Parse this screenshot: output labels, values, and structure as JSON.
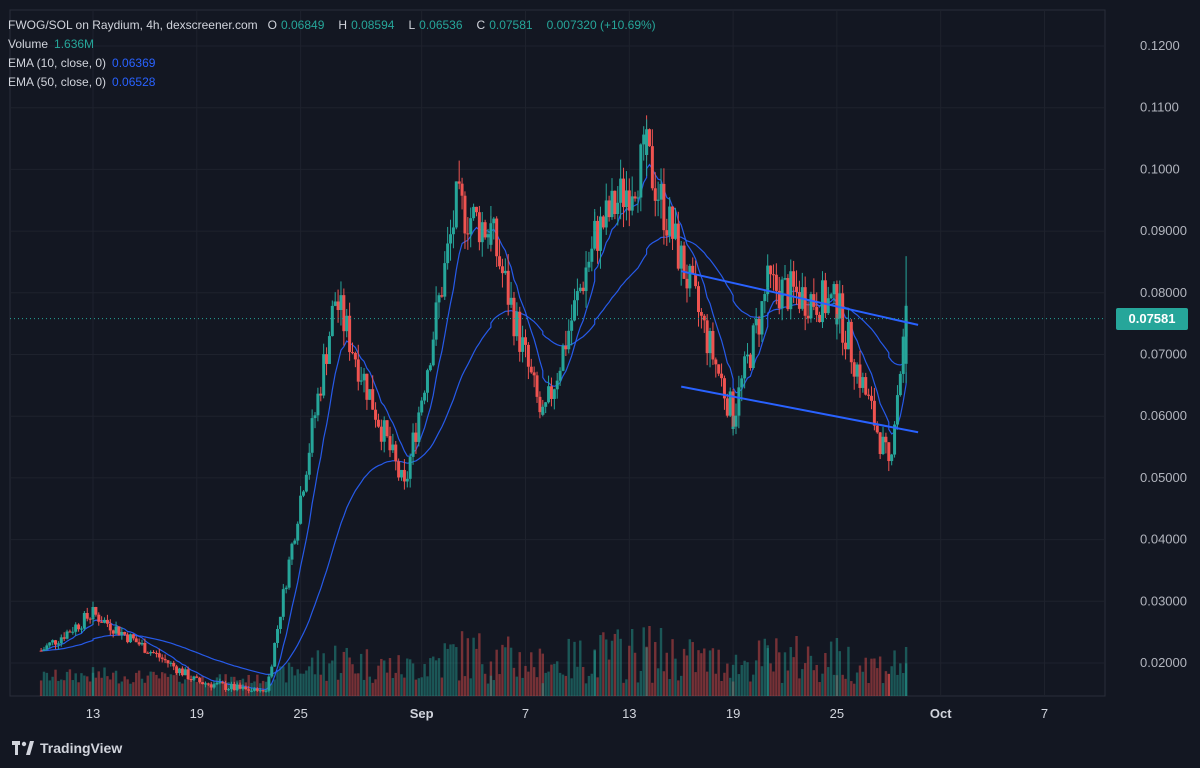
{
  "header": {
    "symbol": "FWOG/SOL on Raydium, 4h, dexscreener.com",
    "open_label": "O",
    "open": "0.06849",
    "high_label": "H",
    "high": "0.08594",
    "low_label": "L",
    "low": "0.06536",
    "close_label": "C",
    "close": "0.07581",
    "change": "0.007320 (+10.69%)"
  },
  "indicators": {
    "volume_label": "Volume",
    "volume": "1.636M",
    "ema10_label": "EMA (10, close, 0)",
    "ema10": "0.06369",
    "ema50_label": "EMA (50, close, 0)",
    "ema50": "0.06528"
  },
  "last_price": "0.07581",
  "branding": "TradingView",
  "colors": {
    "up": "#26a69a",
    "down": "#ef5350",
    "ema": "#2962ff",
    "channel": "#2962ff",
    "bg": "#131722"
  },
  "chart_data": {
    "type": "candlestick",
    "yaxis": {
      "ticks": [
        "0.02000",
        "0.03000",
        "0.04000",
        "0.05000",
        "0.06000",
        "0.07000",
        "0.08000",
        "0.09000",
        "0.1000",
        "0.1100",
        "0.1200"
      ]
    },
    "xaxis": {
      "ticks": [
        "13",
        "19",
        "25",
        "Sep",
        "7",
        "13",
        "19",
        "25",
        "Oct",
        "7"
      ]
    },
    "grid": true,
    "key_prices": [
      {
        "x": "Aug 13",
        "y": 0.028
      },
      {
        "x": "Aug 19",
        "y": 0.017
      },
      {
        "x": "Aug 23",
        "y": 0.015
      },
      {
        "x": "Aug 27",
        "y": 0.079
      },
      {
        "x": "Aug 31",
        "y": 0.048
      },
      {
        "x": "Sep 3",
        "y": 0.094
      },
      {
        "x": "Sep 5",
        "y": 0.09
      },
      {
        "x": "Sep 8",
        "y": 0.059
      },
      {
        "x": "Sep 11",
        "y": 0.089
      },
      {
        "x": "Sep 14",
        "y": 0.102
      },
      {
        "x": "Sep 19",
        "y": 0.06
      },
      {
        "x": "Sep 21",
        "y": 0.081
      },
      {
        "x": "Sep 25",
        "y": 0.078
      },
      {
        "x": "Sep 28",
        "y": 0.052
      },
      {
        "x": "Sep 29",
        "y": 0.07581
      }
    ],
    "channel": {
      "upper": [
        {
          "x": "Sep 16",
          "y": 0.0835
        },
        {
          "x": "Sep 29",
          "y": 0.0748
        }
      ],
      "lower": [
        {
          "x": "Sep 16",
          "y": 0.0648
        },
        {
          "x": "Sep 29",
          "y": 0.0574
        }
      ]
    }
  }
}
